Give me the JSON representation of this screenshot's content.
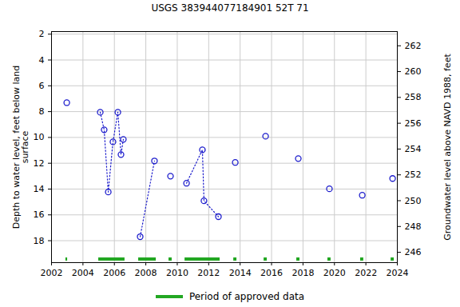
{
  "chart_data": {
    "type": "scatter",
    "title": "USGS 383944077184901 52T 71",
    "y_label": "Depth to water level, feet below land\nsurface",
    "y2_label": "Groundwater level above NAVD 1988, feet",
    "x": [
      2002.97,
      null,
      2005.1,
      2005.35,
      2005.61,
      2005.91,
      2006.22,
      2006.42,
      2006.57,
      null,
      2007.64,
      2008.55,
      null,
      2009.57,
      null,
      2010.59,
      2011.6,
      2011.7,
      2012.62,
      null,
      2013.69,
      null,
      2015.62,
      null,
      2017.7,
      null,
      2019.68,
      null,
      2021.77,
      null,
      2023.7
    ],
    "values": [
      7.31,
      null,
      8.05,
      9.41,
      14.23,
      10.34,
      8.05,
      11.33,
      10.15,
      null,
      17.69,
      11.82,
      null,
      13.0,
      null,
      13.55,
      10.96,
      14.91,
      16.14,
      null,
      11.94,
      null,
      9.91,
      null,
      11.64,
      null,
      13.98,
      null,
      14.48,
      null,
      13.18
    ],
    "color": "#1c1ccc",
    "marker": "circle",
    "line_style": "dotted",
    "approved_periods": {
      "name": "Period of approved data",
      "color": "#22a722",
      "start": [
        2002.91,
        2005.0,
        2007.54,
        2009.47,
        2010.49,
        2013.59,
        2015.52,
        2017.6,
        2019.58,
        2021.66,
        2023.6
      ],
      "end": [
        2003.02,
        2006.67,
        2008.66,
        2009.67,
        2012.72,
        2013.79,
        2015.72,
        2017.8,
        2019.78,
        2021.86,
        2023.8
      ]
    },
    "xlim": [
      2002,
      2024
    ],
    "xticks": [
      2002,
      2004,
      2006,
      2008,
      2010,
      2012,
      2014,
      2016,
      2018,
      2020,
      2022,
      2024
    ],
    "ylim": [
      19.7,
      1.8
    ],
    "yticks": [
      2,
      4,
      6,
      8,
      10,
      12,
      14,
      16,
      18
    ],
    "y2lim": [
      245.2,
      263.1
    ],
    "y2ticks": [
      246,
      248,
      250,
      252,
      254,
      256,
      258,
      260,
      262
    ],
    "grid": true
  }
}
